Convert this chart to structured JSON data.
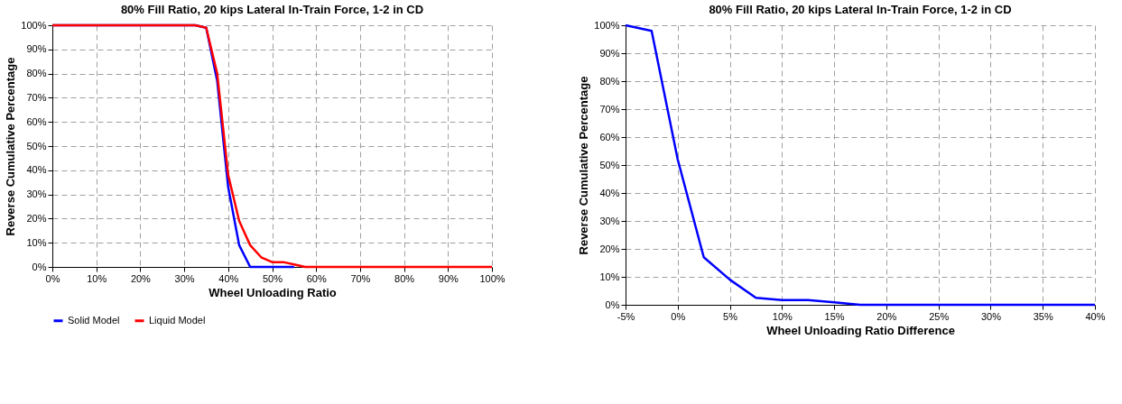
{
  "chart_data": [
    {
      "type": "line",
      "title": "80% Fill Ratio, 20 kips Lateral In-Train Force, 1-2 in CD",
      "xlabel": "Wheel Unloading Ratio",
      "ylabel": "Reverse Cumulative Percentage",
      "series": [
        {
          "name": "Solid Model",
          "color": "#0000ff",
          "x": [
            0,
            32.5,
            35,
            37.5,
            40,
            42.5,
            45,
            47.5,
            50,
            55
          ],
          "values": [
            100,
            100,
            99,
            77,
            33,
            9,
            0,
            0,
            0,
            0
          ]
        },
        {
          "name": "Liquid Model",
          "color": "#ff0000",
          "x": [
            0,
            32.5,
            35,
            37.5,
            40,
            42.5,
            45,
            47.5,
            50,
            52.5,
            55,
            57.5,
            60,
            70,
            80,
            90,
            100
          ],
          "values": [
            100,
            100,
            99,
            80,
            38,
            19,
            9,
            4,
            2,
            2,
            1,
            0,
            0,
            0,
            0,
            0,
            0
          ]
        }
      ],
      "xlim": [
        0,
        100
      ],
      "ylim": [
        0,
        100
      ],
      "xticks": [
        {
          "value": 0,
          "label": "0%"
        },
        {
          "value": 10,
          "label": "10%"
        },
        {
          "value": 20,
          "label": "20%"
        },
        {
          "value": 30,
          "label": "30%"
        },
        {
          "value": 40,
          "label": "40%"
        },
        {
          "value": 50,
          "label": "50%"
        },
        {
          "value": 60,
          "label": "60%"
        },
        {
          "value": 70,
          "label": "70%"
        },
        {
          "value": 80,
          "label": "80%"
        },
        {
          "value": 90,
          "label": "90%"
        },
        {
          "value": 100,
          "label": "100%"
        }
      ],
      "yticks": [
        {
          "value": 0,
          "label": "0%"
        },
        {
          "value": 10,
          "label": "10%"
        },
        {
          "value": 20,
          "label": "20%"
        },
        {
          "value": 30,
          "label": "30%"
        },
        {
          "value": 40,
          "label": "40%"
        },
        {
          "value": 50,
          "label": "50%"
        },
        {
          "value": 60,
          "label": "60%"
        },
        {
          "value": 70,
          "label": "70%"
        },
        {
          "value": 80,
          "label": "80%"
        },
        {
          "value": 90,
          "label": "90%"
        },
        {
          "value": 100,
          "label": "100%"
        }
      ],
      "grid": true,
      "legend": "bottom",
      "marker": "none",
      "line_style": "solid"
    },
    {
      "type": "line",
      "title": "80% Fill Ratio, 20 kips Lateral In-Train Force, 1-2 in CD",
      "xlabel": "Wheel Unloading Ratio Difference",
      "ylabel": "Reverse Cumulative Percentage",
      "series": [
        {
          "color": "#0000ff",
          "x": [
            -5,
            -2.5,
            0,
            2.5,
            5,
            7.5,
            10,
            12.5,
            15,
            17.5,
            20,
            25,
            30,
            35,
            40
          ],
          "values": [
            100,
            98,
            52,
            17,
            9,
            2.5,
            1.7,
            1.7,
            0.9,
            0,
            0,
            0,
            0,
            0,
            0
          ]
        }
      ],
      "xlim": [
        -5,
        40
      ],
      "ylim": [
        0,
        100
      ],
      "xticks": [
        {
          "value": -5,
          "label": "-5%"
        },
        {
          "value": 0,
          "label": "0%"
        },
        {
          "value": 5,
          "label": "5%"
        },
        {
          "value": 10,
          "label": "10%"
        },
        {
          "value": 15,
          "label": "15%"
        },
        {
          "value": 20,
          "label": "20%"
        },
        {
          "value": 25,
          "label": "25%"
        },
        {
          "value": 30,
          "label": "30%"
        },
        {
          "value": 35,
          "label": "35%"
        },
        {
          "value": 40,
          "label": "40%"
        }
      ],
      "yticks": [
        {
          "value": 0,
          "label": "0%"
        },
        {
          "value": 10,
          "label": "10%"
        },
        {
          "value": 20,
          "label": "20%"
        },
        {
          "value": 30,
          "label": "30%"
        },
        {
          "value": 40,
          "label": "40%"
        },
        {
          "value": 50,
          "label": "50%"
        },
        {
          "value": 60,
          "label": "60%"
        },
        {
          "value": 70,
          "label": "70%"
        },
        {
          "value": 80,
          "label": "80%"
        },
        {
          "value": 90,
          "label": "90%"
        },
        {
          "value": 100,
          "label": "100%"
        }
      ],
      "grid": true,
      "marker": "none",
      "line_style": "solid"
    }
  ]
}
